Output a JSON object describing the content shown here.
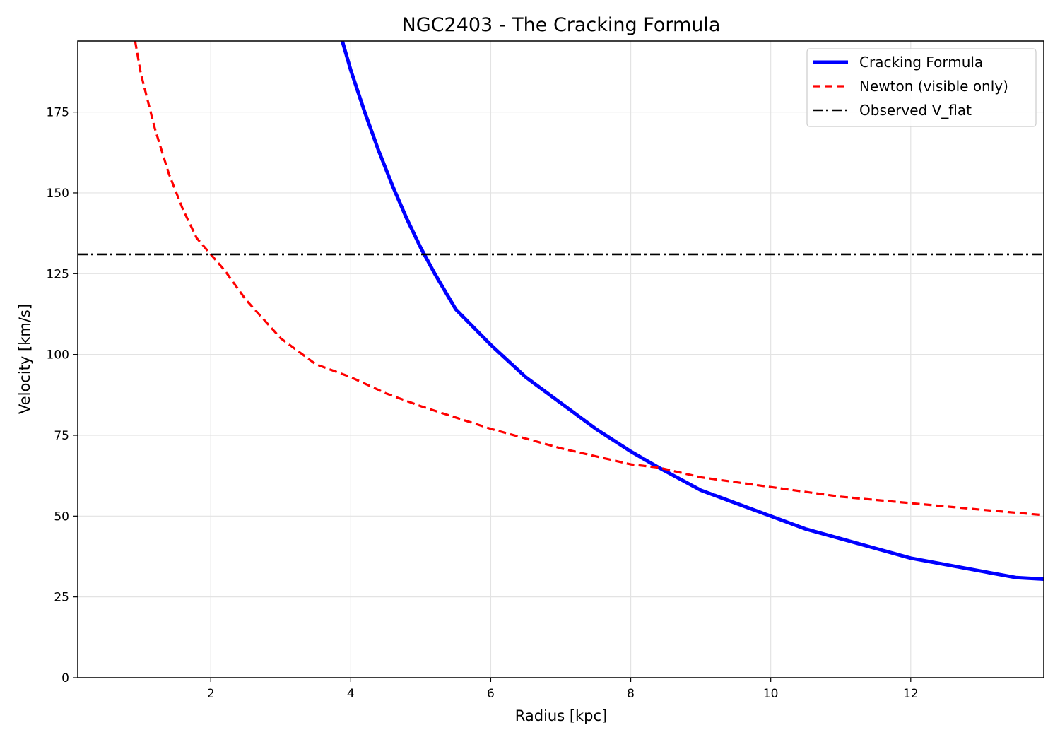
{
  "chart_data": {
    "type": "line",
    "title": "NGC2403 - The Cracking Formula",
    "xlabel": "Radius [kpc]",
    "ylabel": "Velocity [km/s]",
    "xlim": [
      0.1,
      13.9
    ],
    "ylim": [
      0,
      197
    ],
    "xticks": [
      2,
      4,
      6,
      8,
      10,
      12
    ],
    "yticks": [
      0,
      25,
      50,
      75,
      100,
      125,
      150,
      175
    ],
    "grid": true,
    "legend_position": "top-right",
    "series": [
      {
        "name": "Cracking Formula",
        "color": "#0000ff",
        "style": "solid",
        "x": [
          3.88,
          4.0,
          4.2,
          4.4,
          4.6,
          4.8,
          5.0,
          5.2,
          5.5,
          6.0,
          6.5,
          7.0,
          7.5,
          8.0,
          8.4,
          9.0,
          9.5,
          10.0,
          10.5,
          11.0,
          11.5,
          12.0,
          12.5,
          13.0,
          13.5,
          13.9
        ],
        "y": [
          197,
          188,
          175,
          163,
          152,
          142,
          133,
          125,
          114,
          103,
          93,
          85,
          77,
          70,
          65,
          58,
          54,
          50,
          46,
          43,
          40,
          37,
          35,
          33,
          31,
          30.5
        ]
      },
      {
        "name": "Newton (visible only)",
        "color": "#ff0000",
        "style": "dashed",
        "x": [
          0.92,
          1.0,
          1.2,
          1.4,
          1.6,
          1.8,
          2.0,
          2.2,
          2.5,
          3.0,
          3.5,
          4.0,
          4.5,
          5.0,
          6.0,
          7.0,
          8.0,
          8.4,
          9.0,
          10.0,
          11.0,
          12.0,
          13.0,
          13.9
        ],
        "y": [
          197,
          187,
          170,
          156,
          145,
          136,
          131,
          126,
          117,
          105,
          97,
          93,
          88,
          84,
          77,
          71,
          66,
          65,
          62,
          59,
          56,
          54,
          52,
          50.3
        ]
      },
      {
        "name": "Observed V_flat",
        "color": "#000000",
        "style": "dashdot",
        "x": [
          0.1,
          13.9
        ],
        "y": [
          131,
          131
        ]
      }
    ]
  }
}
